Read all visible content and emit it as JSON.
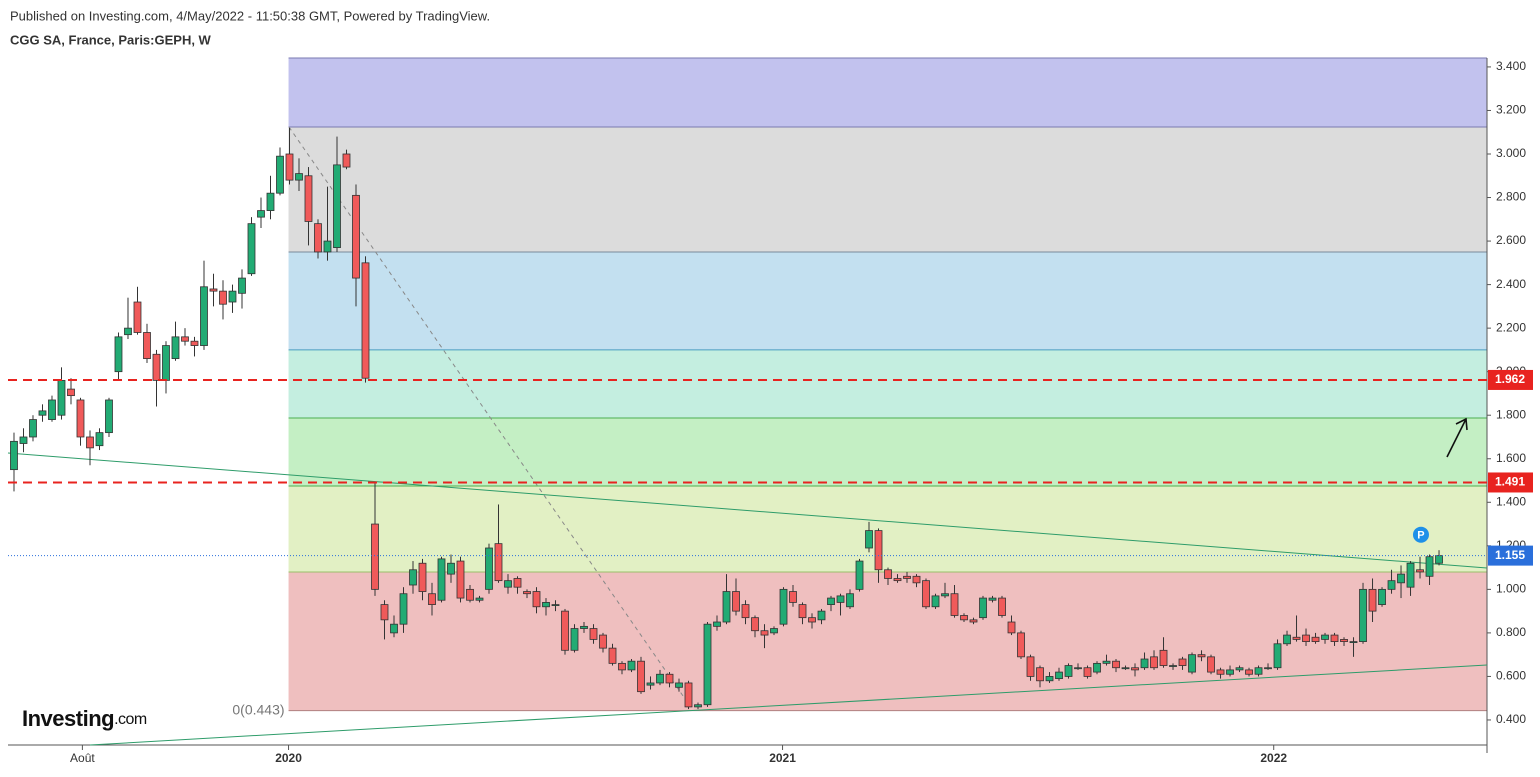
{
  "chart_data": {
    "type": "candlestick",
    "subtitle": "Published on Investing.com, 4/May/2022 - 11:50:38 GMT, Powered by TradingView.",
    "title": "CGG SA, France, Paris:GEPH, W",
    "logo": {
      "name": "Investing",
      "suffix": ".com"
    },
    "up_color": "#22ab74",
    "down_color": "#f05a5a",
    "open": [
      1.55,
      1.67,
      1.7,
      1.8,
      1.78,
      1.8,
      1.92,
      1.87,
      1.7,
      1.66,
      1.72,
      2.0,
      2.17,
      2.32,
      2.18,
      2.08,
      1.96,
      2.06,
      2.16,
      2.14,
      2.12,
      2.38,
      2.37,
      2.32,
      2.36,
      2.45,
      2.71,
      2.74,
      2.82,
      3.0,
      2.88,
      2.9,
      2.68,
      2.55,
      2.57,
      3.0,
      2.81,
      2.5,
      1.3,
      0.93,
      0.8,
      0.84,
      1.02,
      1.12,
      0.98,
      0.95,
      1.07,
      1.13,
      1.0,
      0.95,
      1.0,
      1.21,
      1.01,
      1.05,
      0.99,
      0.99,
      0.92,
      0.93,
      0.9,
      0.72,
      0.82,
      0.82,
      0.79,
      0.73,
      0.66,
      0.63,
      0.67,
      0.56,
      0.57,
      0.61,
      0.55,
      0.57,
      0.46,
      0.47,
      0.83,
      0.85,
      0.99,
      0.93,
      0.87,
      0.81,
      0.8,
      0.84,
      0.99,
      0.93,
      0.87,
      0.86,
      0.93,
      0.94,
      0.92,
      1.0,
      1.19,
      1.27,
      1.09,
      1.05,
      1.06,
      1.06,
      1.04,
      0.92,
      0.97,
      0.98,
      0.88,
      0.86,
      0.87,
      0.95,
      0.96,
      0.85,
      0.8,
      0.69,
      0.64,
      0.58,
      0.59,
      0.6,
      0.64,
      0.64,
      0.62,
      0.66,
      0.67,
      0.64,
      0.64,
      0.64,
      0.69,
      0.72,
      0.65,
      0.68,
      0.62,
      0.7,
      0.69,
      0.63,
      0.61,
      0.63,
      0.63,
      0.61,
      0.64,
      0.64,
      0.75,
      0.78,
      0.79,
      0.78,
      0.77,
      0.79,
      0.77,
      0.76,
      0.76,
      1.0,
      0.93,
      1.0,
      1.03,
      1.01,
      1.09,
      1.06,
      1.12
    ],
    "high": [
      1.72,
      1.74,
      1.8,
      1.85,
      1.89,
      2.02,
      1.97,
      1.88,
      1.73,
      1.74,
      1.88,
      2.18,
      2.34,
      2.39,
      2.22,
      2.1,
      2.14,
      2.23,
      2.2,
      2.16,
      2.51,
      2.45,
      2.42,
      2.4,
      2.47,
      2.71,
      2.8,
      2.9,
      3.03,
      3.12,
      2.98,
      2.94,
      2.7,
      2.85,
      3.08,
      3.02,
      2.86,
      2.53,
      1.49,
      0.95,
      0.88,
      1.01,
      1.13,
      1.14,
      1.03,
      1.15,
      1.16,
      1.15,
      1.02,
      0.97,
      1.21,
      1.39,
      1.07,
      1.06,
      1.0,
      1.01,
      0.96,
      0.95,
      0.91,
      0.84,
      0.85,
      0.84,
      0.8,
      0.75,
      0.67,
      0.68,
      0.69,
      0.6,
      0.63,
      0.62,
      0.59,
      0.58,
      0.48,
      0.85,
      0.88,
      1.07,
      1.05,
      0.95,
      0.88,
      0.84,
      0.83,
      1.01,
      1.02,
      0.94,
      0.89,
      0.91,
      0.97,
      0.98,
      1.0,
      1.14,
      1.31,
      1.28,
      1.1,
      1.07,
      1.08,
      1.07,
      1.05,
      0.98,
      1.03,
      1.02,
      0.89,
      0.87,
      0.97,
      0.97,
      0.97,
      0.88,
      0.81,
      0.7,
      0.65,
      0.62,
      0.64,
      0.66,
      0.66,
      0.65,
      0.67,
      0.7,
      0.68,
      0.65,
      0.66,
      0.71,
      0.72,
      0.78,
      0.66,
      0.69,
      0.71,
      0.72,
      0.7,
      0.64,
      0.65,
      0.65,
      0.64,
      0.65,
      0.66,
      0.77,
      0.81,
      0.88,
      0.82,
      0.8,
      0.8,
      0.8,
      0.78,
      0.78,
      1.03,
      1.05,
      1.01,
      1.09,
      1.11,
      1.13,
      1.15,
      1.16,
      1.18
    ],
    "low": [
      1.45,
      1.63,
      1.68,
      1.77,
      1.77,
      1.78,
      1.85,
      1.66,
      1.57,
      1.64,
      1.7,
      1.96,
      2.15,
      2.17,
      2.04,
      1.84,
      1.9,
      2.05,
      2.12,
      2.07,
      2.1,
      2.3,
      2.24,
      2.27,
      2.29,
      2.44,
      2.66,
      2.7,
      2.81,
      2.86,
      2.83,
      2.58,
      2.52,
      2.51,
      2.55,
      2.93,
      2.3,
      1.95,
      0.97,
      0.77,
      0.78,
      0.8,
      0.98,
      0.95,
      0.88,
      0.94,
      1.03,
      0.94,
      0.94,
      0.94,
      0.98,
      1.03,
      0.98,
      0.98,
      0.96,
      0.89,
      0.88,
      0.9,
      0.7,
      0.71,
      0.8,
      0.75,
      0.71,
      0.65,
      0.61,
      0.62,
      0.52,
      0.54,
      0.56,
      0.55,
      0.53,
      0.45,
      0.45,
      0.46,
      0.81,
      0.84,
      0.88,
      0.84,
      0.78,
      0.73,
      0.79,
      0.83,
      0.92,
      0.84,
      0.82,
      0.84,
      0.9,
      0.88,
      0.91,
      0.99,
      1.17,
      1.03,
      1.02,
      1.03,
      1.03,
      1.01,
      0.91,
      0.91,
      0.96,
      0.87,
      0.85,
      0.84,
      0.86,
      0.94,
      0.87,
      0.79,
      0.68,
      0.58,
      0.55,
      0.57,
      0.58,
      0.59,
      0.63,
      0.59,
      0.61,
      0.65,
      0.62,
      0.63,
      0.6,
      0.63,
      0.63,
      0.64,
      0.63,
      0.63,
      0.61,
      0.67,
      0.61,
      0.59,
      0.6,
      0.62,
      0.6,
      0.6,
      0.63,
      0.63,
      0.74,
      0.76,
      0.74,
      0.75,
      0.75,
      0.74,
      0.74,
      0.69,
      0.75,
      0.85,
      0.92,
      0.98,
      0.96,
      0.97,
      1.05,
      1.02,
      1.11
    ],
    "close": [
      1.68,
      1.7,
      1.78,
      1.82,
      1.87,
      1.96,
      1.89,
      1.7,
      1.65,
      1.72,
      1.87,
      2.16,
      2.2,
      2.18,
      2.06,
      1.96,
      2.12,
      2.16,
      2.14,
      2.12,
      2.39,
      2.37,
      2.31,
      2.37,
      2.43,
      2.68,
      2.74,
      2.82,
      2.99,
      2.88,
      2.91,
      2.69,
      2.55,
      2.6,
      2.95,
      2.94,
      2.43,
      1.97,
      1.0,
      0.86,
      0.84,
      0.98,
      1.09,
      0.99,
      0.93,
      1.14,
      1.12,
      0.96,
      0.95,
      0.96,
      1.19,
      1.04,
      1.04,
      1.01,
      0.98,
      0.92,
      0.94,
      0.93,
      0.72,
      0.82,
      0.83,
      0.77,
      0.73,
      0.66,
      0.63,
      0.67,
      0.53,
      0.57,
      0.61,
      0.57,
      0.57,
      0.46,
      0.47,
      0.84,
      0.85,
      0.99,
      0.9,
      0.87,
      0.81,
      0.79,
      0.82,
      1.0,
      0.94,
      0.87,
      0.85,
      0.9,
      0.96,
      0.97,
      0.98,
      1.13,
      1.27,
      1.09,
      1.05,
      1.04,
      1.05,
      1.03,
      0.92,
      0.97,
      0.98,
      0.88,
      0.86,
      0.85,
      0.96,
      0.96,
      0.88,
      0.8,
      0.69,
      0.6,
      0.58,
      0.6,
      0.62,
      0.65,
      0.64,
      0.6,
      0.66,
      0.67,
      0.64,
      0.64,
      0.63,
      0.68,
      0.64,
      0.65,
      0.65,
      0.65,
      0.7,
      0.69,
      0.62,
      0.61,
      0.63,
      0.64,
      0.61,
      0.64,
      0.64,
      0.75,
      0.79,
      0.77,
      0.76,
      0.76,
      0.79,
      0.76,
      0.76,
      0.76,
      1.0,
      0.9,
      1.0,
      1.04,
      1.07,
      1.12,
      1.08,
      1.15,
      1.155
    ],
    "xlim": [
      -0.63,
      155.05
    ],
    "xticks": [
      {
        "value": 7.2,
        "label": "Août"
      },
      {
        "value": 28.9,
        "label": "2020"
      },
      {
        "value": 80.9,
        "label": "2021"
      },
      {
        "value": 132.6,
        "label": "2022"
      }
    ],
    "ylim": [
      0.285,
      3.441
    ],
    "yticks": [
      {
        "value": 0.4,
        "label": "0.400"
      },
      {
        "value": 0.6,
        "label": "0.600"
      },
      {
        "value": 0.8,
        "label": "0.800"
      },
      {
        "value": 1.0,
        "label": "1.000"
      },
      {
        "value": 1.2,
        "label": "1.200"
      },
      {
        "value": 1.4,
        "label": "1.400"
      },
      {
        "value": 1.6,
        "label": "1.600"
      },
      {
        "value": 1.8,
        "label": "1.800"
      },
      {
        "value": 2.0,
        "label": "2.000"
      },
      {
        "value": 2.2,
        "label": "2.200"
      },
      {
        "value": 2.4,
        "label": "2.400"
      },
      {
        "value": 2.6,
        "label": "2.600"
      },
      {
        "value": 2.8,
        "label": "2.800"
      },
      {
        "value": 3.0,
        "label": "3.000"
      },
      {
        "value": 3.2,
        "label": "3.200"
      },
      {
        "value": 3.4,
        "label": "3.400"
      }
    ],
    "fib_bands": [
      {
        "from": 0.443,
        "to": 1.08,
        "color": "#efbfbf",
        "line": "#b08080"
      },
      {
        "from": 1.08,
        "to": 1.475,
        "color": "#e2f0c4",
        "line": "#9abf6a"
      },
      {
        "from": 1.475,
        "to": 1.787,
        "color": "#c4efc4",
        "line": "#4caf50"
      },
      {
        "from": 1.787,
        "to": 2.1,
        "color": "#c4eee0",
        "line": "#4caf50"
      },
      {
        "from": 2.1,
        "to": 2.55,
        "color": "#c3e0f0",
        "line": "#4a9cc0"
      },
      {
        "from": 2.55,
        "to": 3.124,
        "color": "#dcdcdc",
        "line": "#7a8a9a"
      },
      {
        "from": 3.124,
        "to": 3.441,
        "color": "#c2c2ee",
        "line": "#7a7ab0"
      }
    ],
    "fib_label": "0(0.443)",
    "price_lines": [
      {
        "value": 1.962,
        "color": "#e8231f",
        "style": "dashed"
      },
      {
        "value": 1.491,
        "color": "#e8231f",
        "style": "dashed"
      },
      {
        "value": 1.155,
        "color": "#2a6fdb",
        "style": "dotted"
      }
    ],
    "marker": "P"
  }
}
